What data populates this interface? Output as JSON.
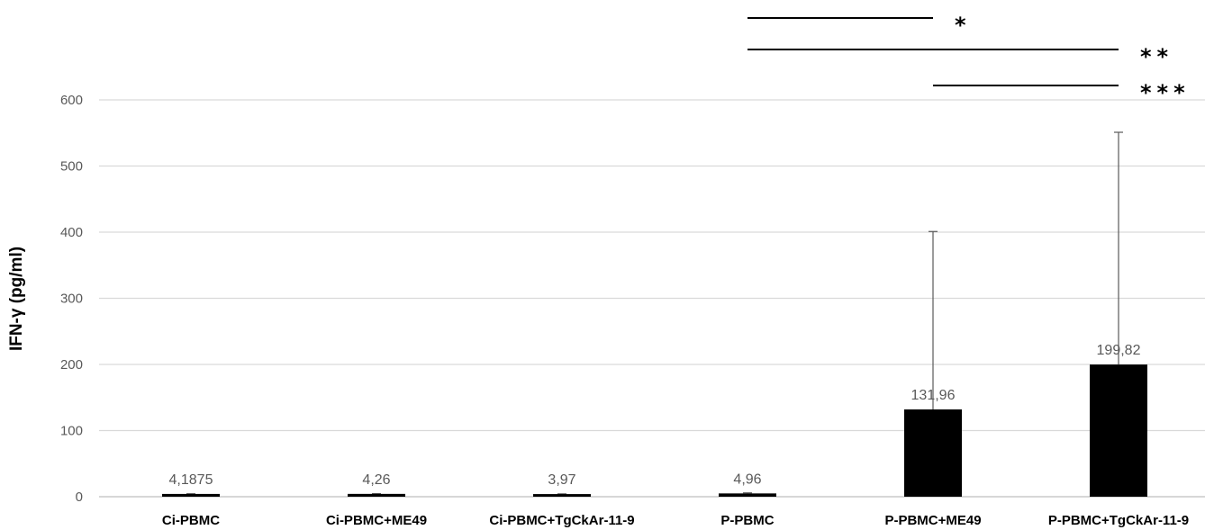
{
  "chart_data": {
    "type": "bar",
    "title": "",
    "xlabel": "",
    "ylabel": "IFN-γ (pg/ml)",
    "ylim": [
      0,
      600
    ],
    "yticks": [
      0,
      100,
      200,
      300,
      400,
      500,
      600
    ],
    "grid": true,
    "legend": "none",
    "categories": [
      "Ci-PBMC",
      "Ci-PBMC+ME49",
      "Ci-PBMC+TgCkAr-11-9",
      "P-PBMC",
      "P-PBMC+ME49",
      "P-PBMC+TgCkAr-11-9"
    ],
    "values": [
      4.1875,
      4.26,
      3.97,
      4.96,
      131.96,
      199.82
    ],
    "value_labels": [
      "4,1875",
      "4,26",
      "3,97",
      "4,96",
      "131,96",
      "199,82"
    ],
    "error_upper": [
      4.5,
      4.6,
      4.3,
      5.8,
      401,
      551
    ],
    "significance": [
      {
        "from": 3,
        "to": 4,
        "label": "*"
      },
      {
        "from": 3,
        "to": 5,
        "label": "**"
      },
      {
        "from": 4,
        "to": 5,
        "label": "***"
      }
    ],
    "bar_color": "#000000",
    "grid_color": "#d9d9d9"
  }
}
